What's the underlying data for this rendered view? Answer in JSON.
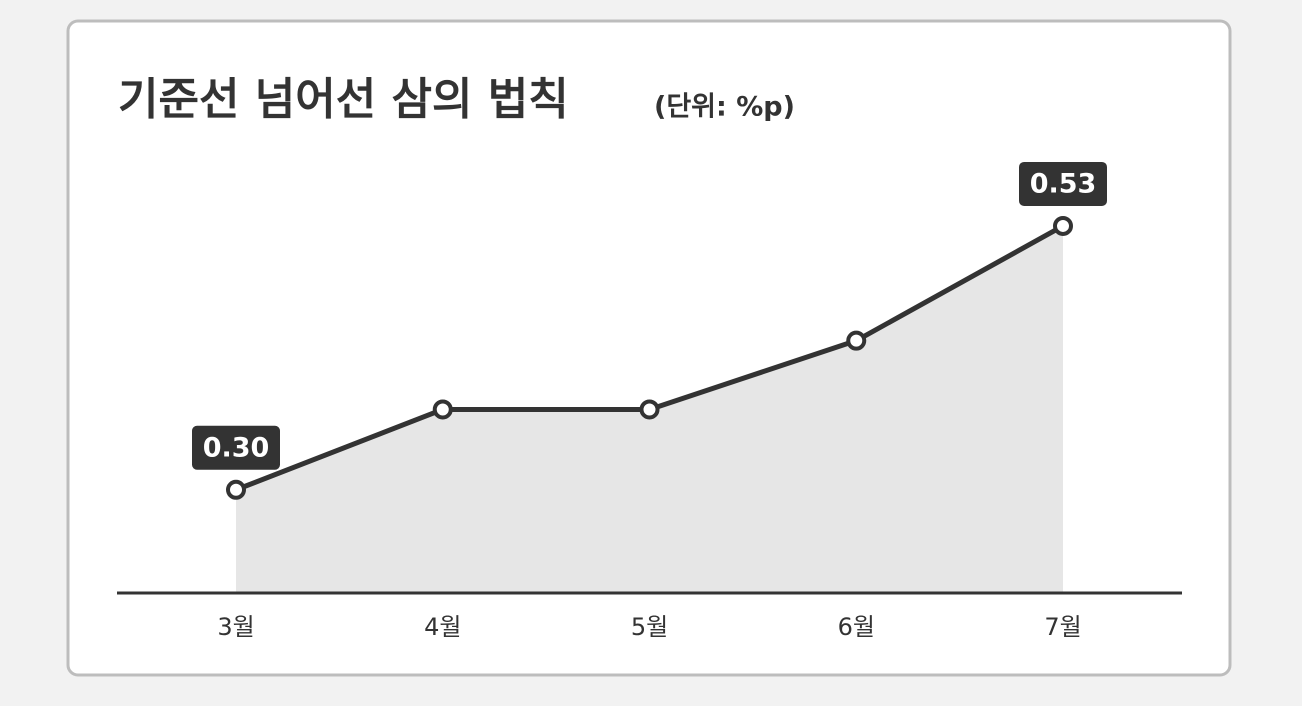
{
  "chart_data": {
    "type": "area-line",
    "title": "기준선 넘어선 삼의 법칙",
    "subtitle": "(단위: %p)",
    "categories": [
      "3월",
      "4월",
      "5월",
      "6월",
      "7월"
    ],
    "values": [
      0.3,
      0.37,
      0.37,
      0.43,
      0.53
    ],
    "value_labels": [
      "0.30",
      null,
      null,
      null,
      "0.53"
    ],
    "color": "#333333",
    "fill": "#e6e6e6",
    "ylim": [
      0.21,
      0.55
    ]
  }
}
